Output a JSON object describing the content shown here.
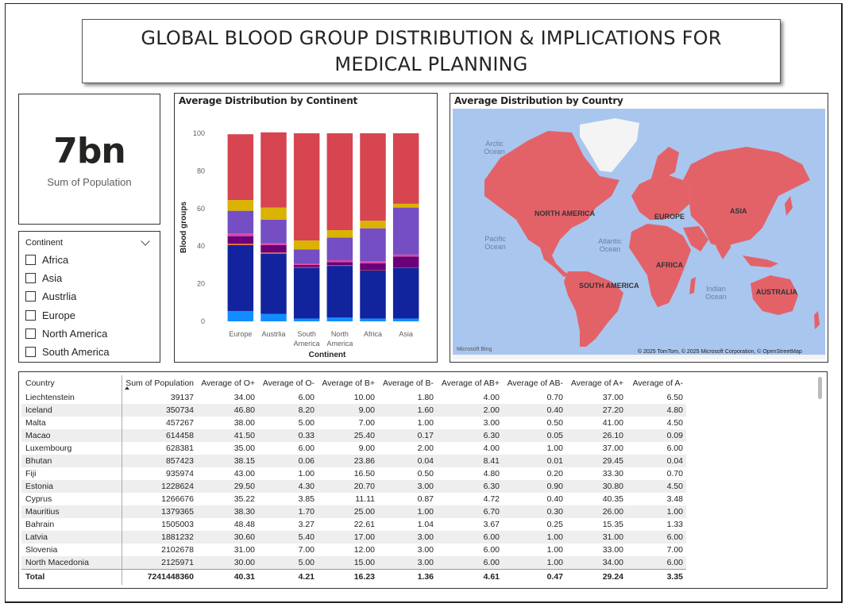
{
  "title": "GLOBAL BLOOD GROUP DISTRIBUTION & IMPLICATIONS FOR MEDICAL PLANNING",
  "kpi": {
    "value": "7bn",
    "label": "Sum of Population"
  },
  "slicer": {
    "header": "Continent",
    "items": [
      "Africa",
      "Asia",
      "Austrlia",
      "Europe",
      "North America",
      "South America"
    ]
  },
  "continent_chart": {
    "title": "Average Distribution by Continent"
  },
  "chart_data": {
    "type": "bar",
    "stacked": true,
    "xlabel": "Continent",
    "ylabel": "Blood groups",
    "ylim": [
      0,
      100
    ],
    "yticks": [
      "0",
      "20",
      "40",
      "60",
      "80",
      "100"
    ],
    "categories": [
      "Europe",
      "Austrlia",
      "South America",
      "North America",
      "Africa",
      "Asia"
    ],
    "category_lines": [
      [
        "Europe"
      ],
      [
        "Austrlia"
      ],
      [
        "South",
        "America"
      ],
      [
        "North",
        "America"
      ],
      [
        "Africa"
      ],
      [
        "Asia"
      ]
    ],
    "series": [
      {
        "color": "#118dff",
        "values": [
          5.5,
          4.0,
          1.5,
          2.0,
          1.5,
          1.5
        ]
      },
      {
        "color": "#12239e",
        "values": [
          35.0,
          32.0,
          27.0,
          27.5,
          25.5,
          27.0
        ]
      },
      {
        "color": "#e66c37",
        "values": [
          0.8,
          0.6,
          0.3,
          0.3,
          0.2,
          0.2
        ]
      },
      {
        "color": "#6b007b",
        "values": [
          4.0,
          4.0,
          1.2,
          1.7,
          3.7,
          5.8
        ]
      },
      {
        "color": "#e044a7",
        "values": [
          1.5,
          1.0,
          0.8,
          1.0,
          1.1,
          1.0
        ]
      },
      {
        "color": "#744ec2",
        "values": [
          12.0,
          12.5,
          7.5,
          12.0,
          17.5,
          25.0
        ]
      },
      {
        "color": "#d9b300",
        "values": [
          5.7,
          6.4,
          4.7,
          4.0,
          4.0,
          2.0
        ]
      },
      {
        "color": "#d64550",
        "values": [
          35.0,
          40.0,
          57.0,
          51.5,
          46.5,
          37.5
        ]
      }
    ]
  },
  "map": {
    "title": "Average Distribution by Country",
    "continent_labels": [
      "NORTH AMERICA",
      "SOUTH AMERICA",
      "EUROPE",
      "AFRICA",
      "ASIA",
      "AUSTRALIA"
    ],
    "ocean_labels": [
      "Arctic Ocean",
      "Pacific Ocean",
      "Atlantic Ocean",
      "Indian Ocean"
    ],
    "attribution": "© 2025 TomTom, © 2025 Microsoft Corporation, © OpenStreetMap",
    "attribution_link": "OpenStreetMap",
    "logo": "Microsoft Bing",
    "land_color": "#e36268",
    "ocean_color": "#a9c6ef"
  },
  "table": {
    "columns": [
      "Country",
      "Sum of Population",
      "Average of O+",
      "Average of O-",
      "Average of B+",
      "Average of B-",
      "Average of AB+",
      "Average of AB-",
      "Average of A+",
      "Average of A-"
    ],
    "rows": [
      [
        "Liechtenstein",
        "39137",
        "34.00",
        "6.00",
        "10.00",
        "1.80",
        "4.00",
        "0.70",
        "37.00",
        "6.50"
      ],
      [
        "Iceland",
        "350734",
        "46.80",
        "8.20",
        "9.00",
        "1.60",
        "2.00",
        "0.40",
        "27.20",
        "4.80"
      ],
      [
        "Malta",
        "457267",
        "38.00",
        "5.00",
        "7.00",
        "1.00",
        "3.00",
        "0.50",
        "41.00",
        "4.50"
      ],
      [
        "Macao",
        "614458",
        "41.50",
        "0.33",
        "25.40",
        "0.17",
        "6.30",
        "0.05",
        "26.10",
        "0.09"
      ],
      [
        "Luxembourg",
        "628381",
        "35.00",
        "6.00",
        "9.00",
        "2.00",
        "4.00",
        "1.00",
        "37.00",
        "6.00"
      ],
      [
        "Bhutan",
        "857423",
        "38.15",
        "0.06",
        "23.86",
        "0.04",
        "8.41",
        "0.01",
        "29.45",
        "0.04"
      ],
      [
        "Fiji",
        "935974",
        "43.00",
        "1.00",
        "16.50",
        "0.50",
        "4.80",
        "0.20",
        "33.30",
        "0.70"
      ],
      [
        "Estonia",
        "1228624",
        "29.50",
        "4.30",
        "20.70",
        "3.00",
        "6.30",
        "0.90",
        "30.80",
        "4.50"
      ],
      [
        "Cyprus",
        "1266676",
        "35.22",
        "3.85",
        "11.11",
        "0.87",
        "4.72",
        "0.40",
        "40.35",
        "3.48"
      ],
      [
        "Mauritius",
        "1379365",
        "38.30",
        "1.70",
        "25.00",
        "1.00",
        "6.70",
        "0.30",
        "26.00",
        "1.00"
      ],
      [
        "Bahrain",
        "1505003",
        "48.48",
        "3.27",
        "22.61",
        "1.04",
        "3.67",
        "0.25",
        "15.35",
        "1.33"
      ],
      [
        "Latvia",
        "1881232",
        "30.60",
        "5.40",
        "17.00",
        "3.00",
        "6.00",
        "1.00",
        "31.00",
        "6.00"
      ],
      [
        "Slovenia",
        "2102678",
        "31.00",
        "7.00",
        "12.00",
        "3.00",
        "6.00",
        "1.00",
        "33.00",
        "7.00"
      ],
      [
        "North Macedonia",
        "2125971",
        "30.00",
        "5.00",
        "15.00",
        "3.00",
        "6.00",
        "1.00",
        "34.00",
        "6.00"
      ]
    ],
    "total": [
      "Total",
      "7241448360",
      "40.31",
      "4.21",
      "16.23",
      "1.36",
      "4.61",
      "0.47",
      "29.24",
      "3.35"
    ]
  }
}
